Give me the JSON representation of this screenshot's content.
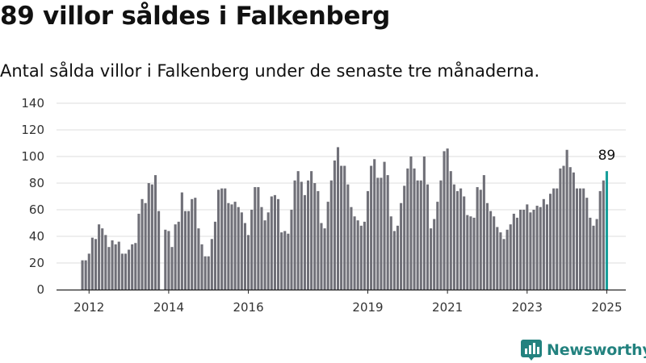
{
  "header": {
    "title": "89 villor såldes i Falkenberg",
    "subtitle": "Antal sålda villor i Falkenberg under de senaste tre månaderna."
  },
  "colors": {
    "bar": "#707078",
    "highlight": "#179e9a",
    "brand": "#23827f",
    "grid": "#dddddd",
    "axis": "#222222"
  },
  "brand": {
    "name": "Newsworthy",
    "icon": "newsworthy-logo-icon"
  },
  "chart_data": {
    "type": "bar",
    "title": "89 villor såldes i Falkenberg",
    "subtitle": "Antal sålda villor i Falkenberg under de senaste tre månaderna.",
    "xlabel": "",
    "ylabel": "",
    "ylim": [
      0,
      140
    ],
    "yticks": [
      0,
      20,
      40,
      60,
      80,
      100,
      120,
      140
    ],
    "xticks": [
      {
        "label": "2012",
        "at": "2012-01"
      },
      {
        "label": "2014",
        "at": "2014-01"
      },
      {
        "label": "2016",
        "at": "2016-01"
      },
      {
        "label": "2019",
        "at": "2019-01"
      },
      {
        "label": "2021",
        "at": "2021-01"
      },
      {
        "label": "2023",
        "at": "2023-01"
      },
      {
        "label": "2025",
        "at": "2025-01"
      }
    ],
    "grid": true,
    "start_month": "2011-11",
    "end_month": "2025-07",
    "last_value_label": "89",
    "series": [
      {
        "values": [
          22,
          22,
          27,
          39,
          38,
          49,
          46,
          41,
          32,
          37,
          34,
          36,
          27,
          27,
          30,
          34,
          35,
          57,
          68,
          65,
          80,
          79,
          86,
          59,
          null,
          45,
          44,
          32,
          49,
          51,
          73,
          59,
          59,
          68,
          69,
          46,
          34,
          25,
          25,
          38,
          51,
          75,
          76,
          76,
          65,
          64,
          66,
          62,
          58,
          50,
          41,
          60,
          77,
          77,
          62,
          52,
          58,
          70,
          71,
          68,
          43,
          44,
          42,
          60,
          82,
          89,
          81,
          71,
          82,
          89,
          80,
          74,
          50,
          46,
          66,
          82,
          97,
          107,
          93,
          93,
          79,
          62,
          55,
          52,
          48,
          51,
          74,
          93,
          98,
          84,
          84,
          96,
          86,
          55,
          44,
          48,
          65,
          78,
          91,
          100,
          91,
          82,
          82,
          100,
          79,
          46,
          53,
          66,
          82,
          104,
          106,
          89,
          79,
          74,
          76,
          70,
          56,
          55,
          54,
          77,
          75,
          86,
          65,
          59,
          55,
          47,
          43,
          38,
          45,
          49,
          57,
          54,
          60,
          60,
          64,
          58,
          60,
          63,
          62,
          68,
          64,
          72,
          76,
          76,
          91,
          93,
          105,
          92,
          88,
          76,
          76,
          76,
          69,
          54,
          48,
          53,
          74,
          82,
          89
        ]
      }
    ]
  }
}
